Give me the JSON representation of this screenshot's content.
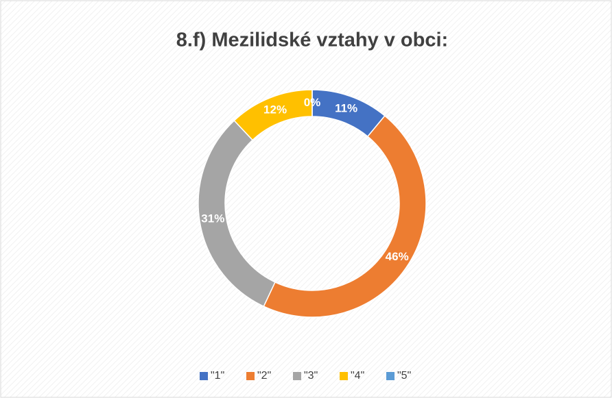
{
  "chart_data": {
    "type": "donut",
    "title": "8.f) Mezilidské vztahy v obci:",
    "categories": [
      "\"1\"",
      "\"2\"",
      "\"3\"",
      "\"4\"",
      "\"5\""
    ],
    "values": [
      11,
      46,
      31,
      12,
      0
    ],
    "value_labels": [
      "11%",
      "46%",
      "31%",
      "12%",
      "0%"
    ],
    "colors": [
      "#4472c4",
      "#ed7d31",
      "#a5a5a5",
      "#ffc000",
      "#5b9bd5"
    ],
    "legend": "bottom"
  }
}
